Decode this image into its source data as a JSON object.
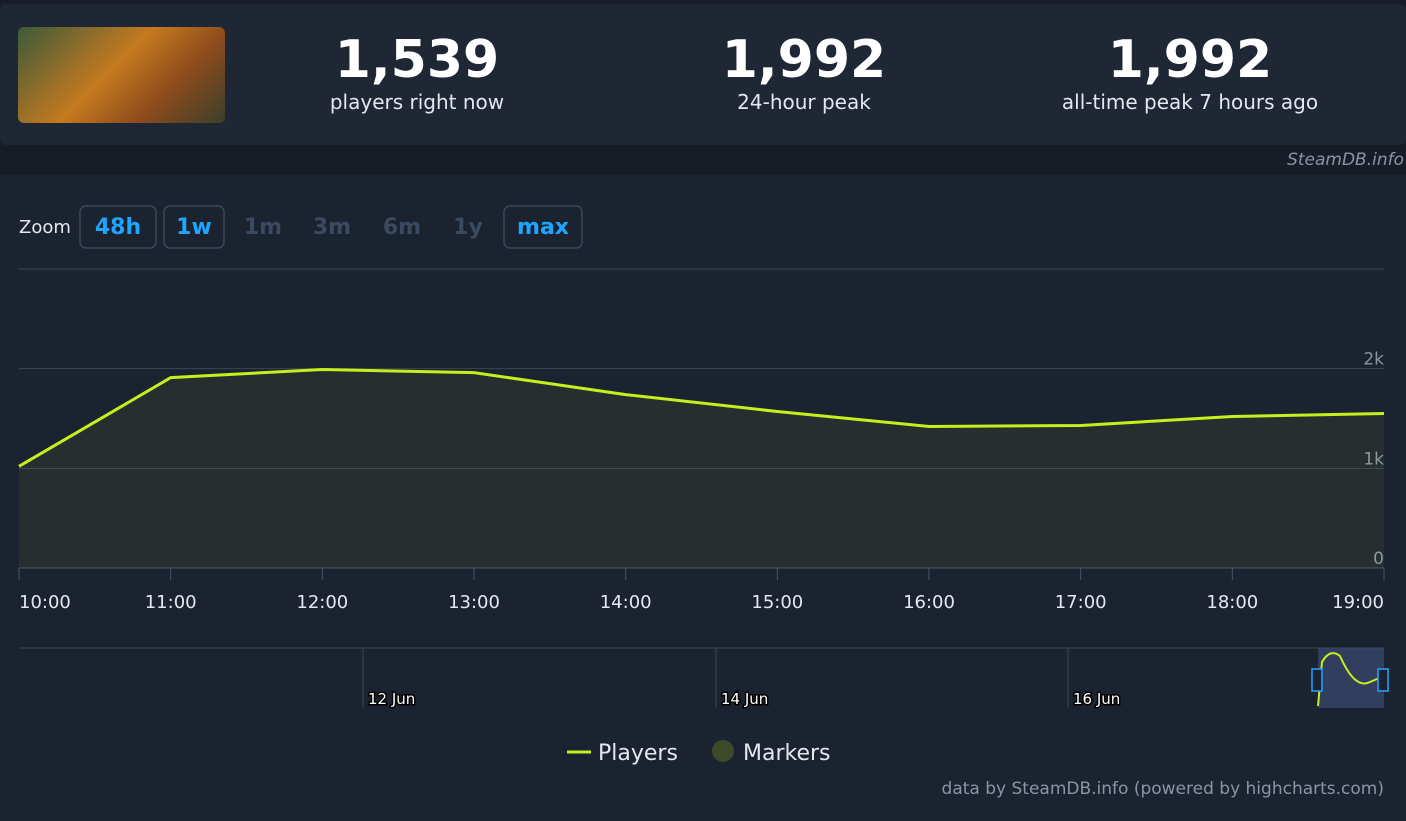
{
  "stats": [
    {
      "value": "1,539",
      "label": "players right now"
    },
    {
      "value": "1,992",
      "label": "24-hour peak"
    },
    {
      "value": "1,992",
      "label": "all-time peak 7 hours ago"
    }
  ],
  "source": "SteamDB.info",
  "zoom": {
    "label": "Zoom",
    "buttons": [
      "48h",
      "1w",
      "1m",
      "3m",
      "6m",
      "1y",
      "max"
    ],
    "active": [
      "48h",
      "1w",
      "max"
    ]
  },
  "chart_data": {
    "type": "line",
    "categories": [
      "10:00",
      "11:00",
      "12:00",
      "13:00",
      "14:00",
      "15:00",
      "16:00",
      "17:00",
      "18:00",
      "19:00"
    ],
    "series": [
      {
        "name": "Players",
        "color": "#c5f01e",
        "values": [
          1020,
          1910,
          1992,
          1960,
          1740,
          1570,
          1420,
          1430,
          1520,
          1550
        ]
      }
    ],
    "markers_legend": {
      "name": "Markers",
      "color": "#3d4a2a"
    },
    "ylim": [
      0,
      3000
    ],
    "yticks": [
      0,
      {
        "value": 1000,
        "label": "1k"
      },
      {
        "value": 2000,
        "label": "2k"
      }
    ],
    "grid": true,
    "navigator_labels": [
      "12 Jun",
      "14 Jun",
      "16 Jun"
    ],
    "credits": "data by SteamDB.info (powered by highcharts.com)"
  }
}
